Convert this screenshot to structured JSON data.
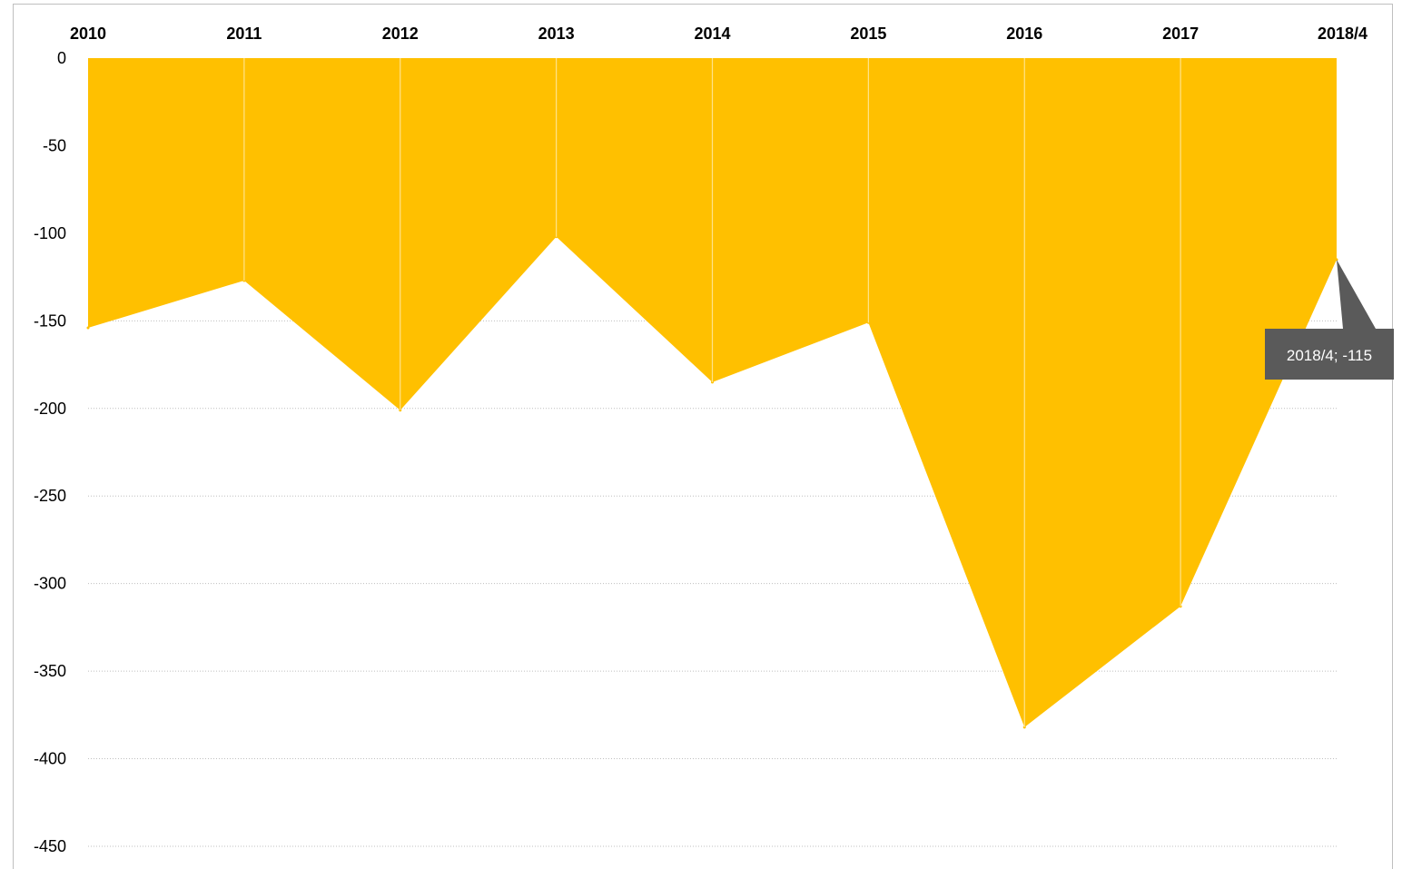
{
  "chart_data": {
    "type": "area",
    "categories": [
      "2010",
      "2011",
      "2012",
      "2013",
      "2014",
      "2015",
      "2016",
      "2017",
      "2018/4"
    ],
    "values": [
      -154,
      -127,
      -201,
      -102,
      -185,
      -151,
      -382,
      -313,
      -115
    ],
    "ylim": [
      -450,
      0
    ],
    "yticks": [
      0,
      -50,
      -100,
      -150,
      -200,
      -250,
      -300,
      -350,
      -400,
      -450
    ],
    "x_axis_position": "top",
    "grid": true,
    "legend": "none",
    "colors": {
      "fill": "#FFC000",
      "gridline": "#BFBFBF",
      "divider": "#FFE38A",
      "callout": "#5A5A5A"
    },
    "annotation": {
      "category": "2018/4",
      "text": "2018/4; -115"
    }
  }
}
